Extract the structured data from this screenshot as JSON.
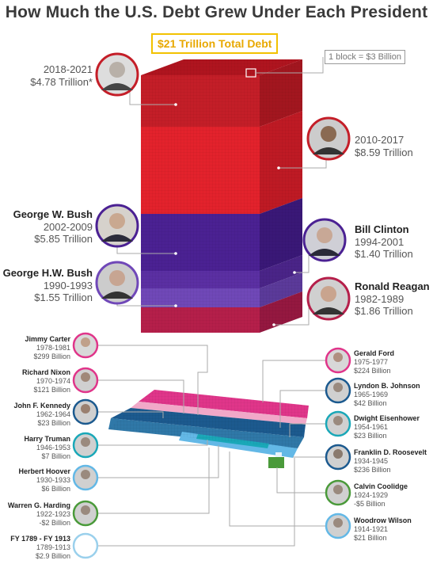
{
  "title": "How Much the U.S. Debt Grew Under Each President",
  "total_label": "$21 Trillion Total Debt",
  "block_key": "1 block = $3 Billion",
  "colors": {
    "trump": "#c41e28",
    "obama": "#e3222c",
    "bushjr": "#4b2193",
    "clinton": "#5b2fa3",
    "bushsr": "#7048b8",
    "reagan": "#b51f4a",
    "pink": "#e0358a",
    "blue": "#1c5a8f",
    "green": "#4a9a3a"
  },
  "chart_data": {
    "type": "bar",
    "title": "How Much the U.S. Debt Grew Under Each President",
    "unit_note": "1 block = $3 Billion",
    "total": "$21 Trillion Total Debt",
    "entries": [
      {
        "name": "",
        "years": "2018-2021",
        "amount": "$4.78 Trillion*",
        "value_billions": 4780
      },
      {
        "name": "",
        "years": "2010-2017",
        "amount": "$8.59 Trillion",
        "value_billions": 8590
      },
      {
        "name": "George W. Bush",
        "years": "2002-2009",
        "amount": "$5.85 Trillion",
        "value_billions": 5850
      },
      {
        "name": "Bill Clinton",
        "years": "1994-2001",
        "amount": "$1.40 Trillion",
        "value_billions": 1400
      },
      {
        "name": "George H.W. Bush",
        "years": "1990-1993",
        "amount": "$1.55 Trillion",
        "value_billions": 1550
      },
      {
        "name": "Ronald Reagan",
        "years": "1982-1989",
        "amount": "$1.86 Trillion",
        "value_billions": 1860
      },
      {
        "name": "Jimmy Carter",
        "years": "1978-1981",
        "amount": "$299 Billion",
        "value_billions": 299
      },
      {
        "name": "Gerald Ford",
        "years": "1975-1977",
        "amount": "$224 Billion",
        "value_billions": 224
      },
      {
        "name": "Richard Nixon",
        "years": "1970-1974",
        "amount": "$121 Billion",
        "value_billions": 121
      },
      {
        "name": "Lyndon B. Johnson",
        "years": "1965-1969",
        "amount": "$42 Billion",
        "value_billions": 42
      },
      {
        "name": "John F. Kennedy",
        "years": "1962-1964",
        "amount": "$23 Billion",
        "value_billions": 23
      },
      {
        "name": "Dwight Eisenhower",
        "years": "1954-1961",
        "amount": "$23 Billion",
        "value_billions": 23
      },
      {
        "name": "Harry Truman",
        "years": "1946-1953",
        "amount": "$7 Billion",
        "value_billions": 7
      },
      {
        "name": "Franklin D. Roosevelt",
        "years": "1934-1945",
        "amount": "$236 Billion",
        "value_billions": 236
      },
      {
        "name": "Herbert Hoover",
        "years": "1930-1933",
        "amount": "$6 Billion",
        "value_billions": 6
      },
      {
        "name": "Calvin Coolidge",
        "years": "1924-1929",
        "amount": "-$5 Billion",
        "value_billions": -5
      },
      {
        "name": "Warren G. Harding",
        "years": "1922-1923",
        "amount": "-$2 Billion",
        "value_billions": -2
      },
      {
        "name": "Woodrow Wilson",
        "years": "1914-1921",
        "amount": "$21 Billion",
        "value_billions": 21
      },
      {
        "name": "FY 1789 - FY 1913",
        "years": "1789-1913",
        "amount": "$2.9 Billion",
        "value_billions": 2.9
      }
    ]
  }
}
